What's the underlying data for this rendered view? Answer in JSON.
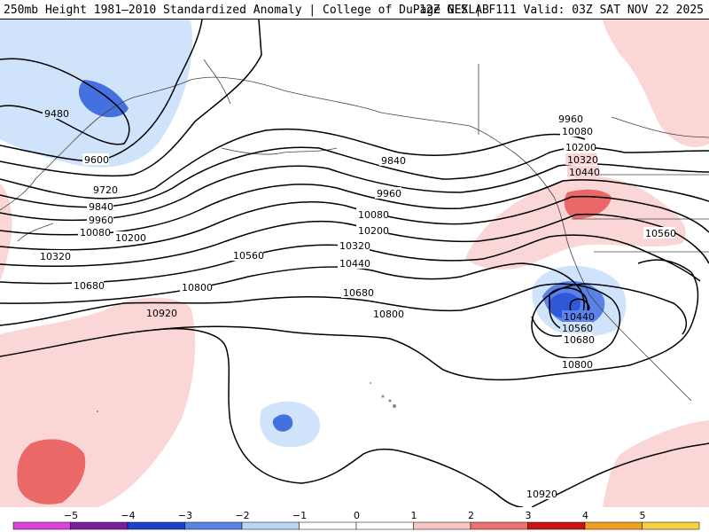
{
  "header": {
    "title": "250mb Height 1981–2010 Standardized Anomaly | College of DuPage NEXLAB",
    "run_info": "12Z GFS | F111 Valid: 03Z SAT NOV 22 2025"
  },
  "contours": {
    "l9480": "9480",
    "l9600": "9600",
    "l9720": "9720",
    "l9840a": "9840",
    "l9840b": "9840",
    "l9960a": "9960",
    "l9960b": "9960",
    "l9960c": "9960",
    "l10080a": "10080",
    "l10080b": "10080",
    "l10080c": "10080",
    "l10200a": "10200",
    "l10200b": "10200",
    "l10200c": "10200",
    "l10320a": "10320",
    "l10320b": "10320",
    "l10320c": "10320",
    "l10440a": "10440",
    "l10440b": "10440",
    "l10440c": "10440",
    "l10560a": "10560",
    "l10560b": "10560",
    "l10560c": "10560",
    "l10680a": "10680",
    "l10680b": "10680",
    "l10680c": "10680",
    "l10800a": "10800",
    "l10800b": "10800",
    "l10800c": "10800",
    "l10920a": "10920",
    "l10920b": "10920"
  },
  "colorbar": {
    "ticks": [
      "−5",
      "−4",
      "−3",
      "−2",
      "−1",
      "0",
      "1",
      "2",
      "3",
      "4",
      "5"
    ],
    "colors": [
      "#e040e0",
      "#7a1fa0",
      "#1f3fc8",
      "#5a82e8",
      "#b8d6f8",
      "#ffffff",
      "#ffffff",
      "#f8c4c4",
      "#f07070",
      "#c81414",
      "#f0a020",
      "#f8d040"
    ]
  }
}
